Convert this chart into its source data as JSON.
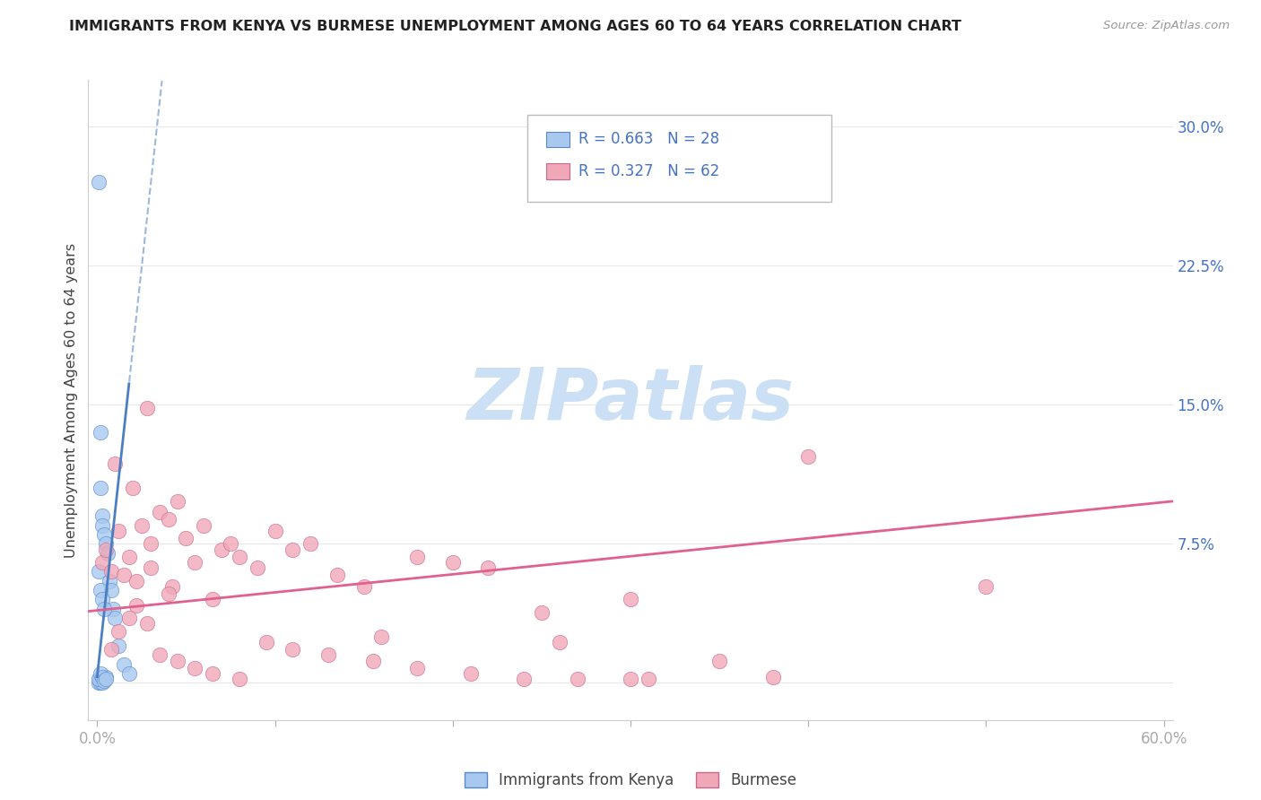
{
  "title": "IMMIGRANTS FROM KENYA VS BURMESE UNEMPLOYMENT AMONG AGES 60 TO 64 YEARS CORRELATION CHART",
  "source": "Source: ZipAtlas.com",
  "ylabel": "Unemployment Among Ages 60 to 64 years",
  "xlim": [
    -0.005,
    0.605
  ],
  "ylim": [
    -0.02,
    0.325
  ],
  "kenya_R": 0.663,
  "kenya_N": 28,
  "burmese_R": 0.327,
  "burmese_N": 62,
  "kenya_color": "#a8c8f0",
  "burmese_color": "#f0a8b8",
  "kenya_edge_color": "#5588cc",
  "burmese_edge_color": "#cc6688",
  "kenya_line_color": "#4a7fc1",
  "burmese_line_color": "#e06090",
  "watermark_color": "#cce0f5",
  "grid_color": "#e8e8e8",
  "title_color": "#222222",
  "source_color": "#999999",
  "tick_color": "#4472c4",
  "kenya_x": [
    0.001,
    0.002,
    0.002,
    0.003,
    0.003,
    0.004,
    0.005,
    0.006,
    0.007,
    0.008,
    0.009,
    0.01,
    0.012,
    0.015,
    0.018,
    0.001,
    0.002,
    0.003,
    0.004,
    0.005,
    0.001,
    0.002,
    0.003,
    0.001,
    0.002,
    0.003,
    0.004,
    0.005
  ],
  "kenya_y": [
    0.27,
    0.135,
    0.105,
    0.09,
    0.085,
    0.08,
    0.075,
    0.07,
    0.055,
    0.05,
    0.04,
    0.035,
    0.02,
    0.01,
    0.005,
    0.06,
    0.05,
    0.045,
    0.04,
    0.003,
    0.0,
    0.0,
    0.0,
    0.002,
    0.005,
    0.003,
    0.001,
    0.002
  ],
  "burmese_x": [
    0.003,
    0.005,
    0.008,
    0.01,
    0.012,
    0.015,
    0.018,
    0.02,
    0.022,
    0.025,
    0.028,
    0.03,
    0.035,
    0.04,
    0.042,
    0.045,
    0.05,
    0.055,
    0.06,
    0.065,
    0.07,
    0.075,
    0.08,
    0.09,
    0.1,
    0.11,
    0.12,
    0.135,
    0.15,
    0.16,
    0.18,
    0.2,
    0.22,
    0.26,
    0.3,
    0.35,
    0.4,
    0.5,
    0.008,
    0.012,
    0.018,
    0.022,
    0.028,
    0.035,
    0.045,
    0.055,
    0.065,
    0.08,
    0.095,
    0.11,
    0.13,
    0.155,
    0.18,
    0.21,
    0.24,
    0.27,
    0.31,
    0.38,
    0.25,
    0.3,
    0.03,
    0.04
  ],
  "burmese_y": [
    0.065,
    0.072,
    0.06,
    0.118,
    0.082,
    0.058,
    0.068,
    0.105,
    0.055,
    0.085,
    0.148,
    0.075,
    0.092,
    0.088,
    0.052,
    0.098,
    0.078,
    0.065,
    0.085,
    0.045,
    0.072,
    0.075,
    0.068,
    0.062,
    0.082,
    0.072,
    0.075,
    0.058,
    0.052,
    0.025,
    0.068,
    0.065,
    0.062,
    0.022,
    0.045,
    0.012,
    0.122,
    0.052,
    0.018,
    0.028,
    0.035,
    0.042,
    0.032,
    0.015,
    0.012,
    0.008,
    0.005,
    0.002,
    0.022,
    0.018,
    0.015,
    0.012,
    0.008,
    0.005,
    0.002,
    0.002,
    0.002,
    0.003,
    0.038,
    0.002,
    0.062,
    0.048
  ]
}
